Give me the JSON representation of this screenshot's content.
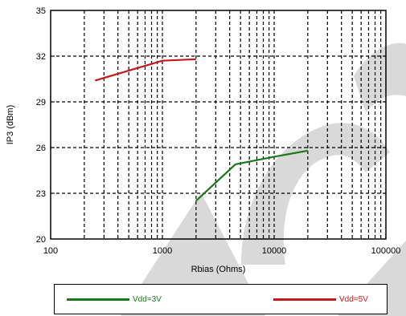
{
  "chart_data": {
    "type": "line",
    "xscale": "log",
    "xlabel": "Rbias (Ohms)",
    "ylabel": "IP3 (dBm)",
    "xlim": [
      100,
      100000
    ],
    "ylim": [
      20,
      35
    ],
    "xticks": [
      100,
      1000,
      10000,
      100000
    ],
    "xtick_labels": [
      "100",
      "1000",
      "10000",
      "100000"
    ],
    "yticks": [
      20,
      23,
      26,
      29,
      32,
      35
    ],
    "ytick_labels": [
      "20",
      "23",
      "26",
      "29",
      "32",
      "35"
    ],
    "grid": true,
    "legend_position": "bottom",
    "series": [
      {
        "name": "Vdd=3V",
        "color": "#1a7a1a",
        "x": [
          2000,
          4500,
          10000,
          20000
        ],
        "y": [
          22.5,
          24.9,
          25.4,
          25.8
        ]
      },
      {
        "name": "Vdd=5V",
        "color": "#c01a1a",
        "x": [
          250,
          1000,
          2000
        ],
        "y": [
          30.4,
          31.7,
          31.8
        ]
      }
    ]
  },
  "watermark": {
    "color": "#d9d9d9"
  }
}
